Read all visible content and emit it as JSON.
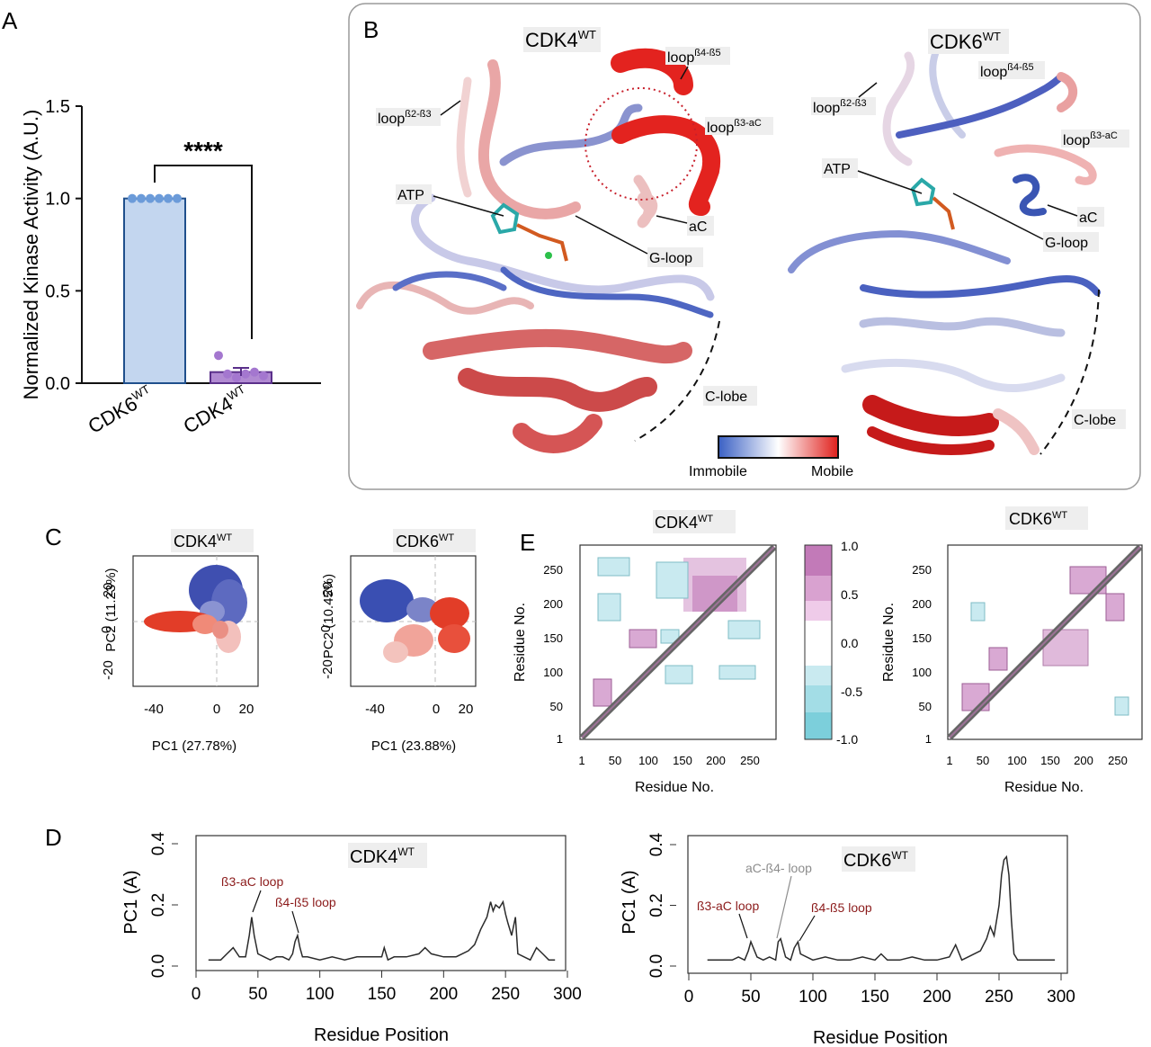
{
  "panel_letters": {
    "a": "A",
    "b": "B",
    "c": "C",
    "d": "D",
    "e": "E"
  },
  "panel_a": {
    "ylabel": "Normalized Kinase Activity (A.U.)",
    "significance": "****",
    "yticks": [
      "0.0",
      "0.5",
      "1.0",
      "1.5"
    ],
    "cat1_main": "CDK6",
    "cat1_sup": "WT",
    "cat2_main": "CDK4",
    "cat2_sup": "WT"
  },
  "panel_b": {
    "cdk4_title_main": "CDK4",
    "cdk4_title_sup": "WT",
    "cdk6_title_main": "CDK6",
    "cdk6_title_sup": "WT",
    "loop": "loop",
    "sup_b45": "ß4-ß5",
    "sup_b23": "ß2-ß3",
    "sup_b3ac": "ß3-aC",
    "atp": "ATP",
    "ac": "aC",
    "gloop": "G-loop",
    "clobe": "C-lobe",
    "legend_immobile": "Immobile",
    "legend_mobile": "Mobile"
  },
  "panel_c": {
    "cdk4_main": "CDK4",
    "cdk4_sup": "WT",
    "cdk6_main": "CDK6",
    "cdk6_sup": "WT",
    "cdk4_xlabel": "PC1 (27.78%)",
    "cdk4_ylabel": "PC2 (11.23%)",
    "cdk6_xlabel": "PC1 (23.88%)",
    "cdk6_ylabel": "PC2 (10.45%)",
    "xticks": [
      "-40",
      "0",
      "20"
    ],
    "yticks": [
      "-20",
      "0",
      "20"
    ]
  },
  "panel_e": {
    "cdk4_main": "CDK4",
    "cdk4_sup": "WT",
    "cdk6_main": "CDK6",
    "cdk6_sup": "WT",
    "xlabel": "Residue No.",
    "ylabel": "Residue No.",
    "ticks": [
      "1",
      "50",
      "100",
      "150",
      "200",
      "250"
    ],
    "colorbar_ticks": [
      "1.0",
      "0.5",
      "0.0",
      "-0.5",
      "-1.0"
    ]
  },
  "panel_d": {
    "cdk4_main": "CDK4",
    "cdk4_sup": "WT",
    "cdk6_main": "CDK6",
    "cdk6_sup": "WT",
    "ylabel": "PC1 (A)",
    "xlabel": "Residue Position",
    "ann_b3ac": "ß3-aC loop",
    "ann_b45": "ß4-ß5 loop",
    "ann_acb4": "aC-ß4- loop",
    "xticks": [
      "0",
      "50",
      "100",
      "150",
      "200",
      "250",
      "300"
    ],
    "yticks": [
      "0.0",
      "0.2",
      "0.4"
    ]
  },
  "chart_data": [
    {
      "type": "bar",
      "categories": [
        "CDK6WT",
        "CDK4WT"
      ],
      "values": [
        1.0,
        0.06
      ],
      "points": [
        [
          1,
          1,
          1,
          1,
          1,
          1
        ],
        [
          0.15,
          0.05,
          0.03,
          0.05,
          0.06,
          0.04
        ]
      ],
      "ylabel": "Normalized Kinase Activity (A.U.)",
      "ylim": [
        0,
        1.5
      ]
    },
    {
      "type": "line",
      "title": "CDK4WT",
      "xlabel": "Residue Position",
      "ylabel": "PC1 (A)",
      "xlim": [
        0,
        300
      ],
      "ylim": [
        0,
        0.4
      ],
      "x": [
        10,
        20,
        25,
        30,
        35,
        40,
        43,
        45,
        47,
        50,
        55,
        60,
        65,
        70,
        75,
        78,
        80,
        82,
        84,
        86,
        90,
        100,
        110,
        120,
        130,
        140,
        150,
        152,
        155,
        160,
        170,
        180,
        185,
        190,
        200,
        210,
        220,
        225,
        230,
        235,
        238,
        240,
        242,
        245,
        248,
        250,
        252,
        255,
        258,
        260,
        265,
        270,
        275,
        280,
        285,
        290
      ],
      "y": [
        0.02,
        0.02,
        0.04,
        0.06,
        0.03,
        0.03,
        0.1,
        0.16,
        0.1,
        0.04,
        0.03,
        0.02,
        0.03,
        0.03,
        0.02,
        0.04,
        0.08,
        0.1,
        0.06,
        0.03,
        0.03,
        0.02,
        0.03,
        0.02,
        0.03,
        0.03,
        0.03,
        0.06,
        0.02,
        0.03,
        0.03,
        0.04,
        0.06,
        0.04,
        0.03,
        0.03,
        0.05,
        0.07,
        0.12,
        0.16,
        0.21,
        0.18,
        0.2,
        0.19,
        0.21,
        0.17,
        0.14,
        0.1,
        0.16,
        0.04,
        0.03,
        0.02,
        0.06,
        0.04,
        0.02,
        0.02
      ]
    },
    {
      "type": "line",
      "title": "CDK6WT",
      "xlabel": "Residue Position",
      "ylabel": "PC1 (A)",
      "xlim": [
        0,
        300
      ],
      "ylim": [
        0,
        0.4
      ],
      "x": [
        15,
        25,
        35,
        40,
        45,
        48,
        50,
        55,
        60,
        65,
        70,
        72,
        74,
        78,
        82,
        85,
        88,
        90,
        95,
        100,
        110,
        120,
        130,
        140,
        150,
        155,
        160,
        170,
        180,
        190,
        200,
        210,
        215,
        220,
        225,
        235,
        240,
        243,
        246,
        250,
        252,
        254,
        256,
        258,
        260,
        262,
        265,
        270,
        280,
        290,
        295
      ],
      "y": [
        0.02,
        0.02,
        0.02,
        0.03,
        0.02,
        0.05,
        0.08,
        0.03,
        0.02,
        0.03,
        0.02,
        0.08,
        0.09,
        0.03,
        0.02,
        0.06,
        0.08,
        0.04,
        0.03,
        0.02,
        0.03,
        0.02,
        0.02,
        0.03,
        0.02,
        0.04,
        0.02,
        0.02,
        0.03,
        0.02,
        0.02,
        0.03,
        0.07,
        0.02,
        0.03,
        0.05,
        0.09,
        0.13,
        0.1,
        0.2,
        0.3,
        0.35,
        0.36,
        0.3,
        0.15,
        0.04,
        0.02,
        0.02,
        0.02,
        0.02,
        0.02
      ]
    }
  ],
  "colors": {
    "bar1": "#c3d6ef",
    "bar1_edge": "#1f4f8c",
    "bar2": "#b18ad2",
    "bar2_edge": "#5a2f8a",
    "mobile": "#e0201c",
    "immobile": "#3a55b3",
    "correlation_pos": "#c27ab8",
    "correlation_neg": "#8ed4de"
  }
}
